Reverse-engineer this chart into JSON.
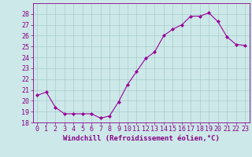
{
  "x": [
    0,
    1,
    2,
    3,
    4,
    5,
    6,
    7,
    8,
    9,
    10,
    11,
    12,
    13,
    14,
    15,
    16,
    17,
    18,
    19,
    20,
    21,
    22,
    23
  ],
  "y": [
    20.5,
    20.8,
    19.4,
    18.8,
    18.8,
    18.8,
    18.8,
    18.4,
    18.6,
    19.9,
    21.5,
    22.7,
    23.9,
    24.5,
    26.0,
    26.6,
    27.0,
    27.8,
    27.8,
    28.1,
    27.3,
    25.9,
    25.2,
    25.1
  ],
  "line_color": "#990099",
  "marker": "D",
  "marker_size": 2.0,
  "bg_color": "#cce8e8",
  "grid_color": "#aacccc",
  "xlabel": "Windchill (Refroidissement éolien,°C)",
  "xlabel_fontsize": 6.5,
  "tick_fontsize": 6.0,
  "ylim": [
    18,
    29
  ],
  "xlim": [
    -0.5,
    23.5
  ],
  "yticks": [
    18,
    19,
    20,
    21,
    22,
    23,
    24,
    25,
    26,
    27,
    28
  ],
  "xticks": [
    0,
    1,
    2,
    3,
    4,
    5,
    6,
    7,
    8,
    9,
    10,
    11,
    12,
    13,
    14,
    15,
    16,
    17,
    18,
    19,
    20,
    21,
    22,
    23
  ],
  "tick_color": "#880088",
  "label_color": "#880088"
}
